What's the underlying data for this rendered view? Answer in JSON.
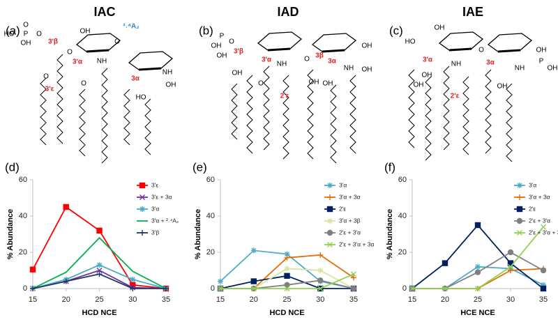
{
  "structures": [
    {
      "title": "IAC",
      "letter": "(a)",
      "labels": [
        {
          "text": "O",
          "color": "#000"
        },
        {
          "text": "HO",
          "color": "#000"
        },
        {
          "text": "P",
          "color": "#000"
        },
        {
          "text": "O",
          "color": "#000"
        },
        {
          "text": "OH",
          "color": "#000"
        },
        {
          "text": "OH",
          "color": "#000"
        },
        {
          "text": "O",
          "color": "#000"
        },
        {
          "text": "NH",
          "color": "#000"
        },
        {
          "text": "NH",
          "color": "#000"
        },
        {
          "text": "O",
          "color": "#000"
        },
        {
          "text": "O",
          "color": "#000"
        },
        {
          "text": "O",
          "color": "#000"
        },
        {
          "text": "HO",
          "color": "#000"
        },
        {
          "text": "OH",
          "color": "#000"
        },
        {
          "text": "3'β",
          "color": "#e02020"
        },
        {
          "text": "3'α",
          "color": "#e02020"
        },
        {
          "text": "3'ε",
          "color": "#e02020"
        },
        {
          "text": "3α",
          "color": "#e02020"
        },
        {
          "text": "²˒⁴A₂",
          "color": "#2e86c1"
        }
      ]
    },
    {
      "title": "IAD",
      "letter": "(b)",
      "labels": [
        {
          "text": "OH",
          "color": "#000"
        },
        {
          "text": "P",
          "color": "#000"
        },
        {
          "text": "O",
          "color": "#000"
        },
        {
          "text": "OH",
          "color": "#000"
        },
        {
          "text": "OH",
          "color": "#000"
        },
        {
          "text": "NH",
          "color": "#000"
        },
        {
          "text": "NH",
          "color": "#000"
        },
        {
          "text": "O",
          "color": "#000"
        },
        {
          "text": "O",
          "color": "#000"
        },
        {
          "text": "OH",
          "color": "#000"
        },
        {
          "text": "OH",
          "color": "#000"
        },
        {
          "text": "OH",
          "color": "#000"
        },
        {
          "text": "OH",
          "color": "#000"
        },
        {
          "text": "3'β",
          "color": "#e02020"
        },
        {
          "text": "3'α",
          "color": "#e02020"
        },
        {
          "text": "3β",
          "color": "#e02020"
        },
        {
          "text": "3α",
          "color": "#e02020"
        },
        {
          "text": "2'ε",
          "color": "#e02020"
        }
      ]
    },
    {
      "title": "IAE",
      "letter": "(c)",
      "labels": [
        {
          "text": "OH",
          "color": "#000"
        },
        {
          "text": "HO",
          "color": "#000"
        },
        {
          "text": "NH",
          "color": "#000"
        },
        {
          "text": "NH",
          "color": "#000"
        },
        {
          "text": "O",
          "color": "#000"
        },
        {
          "text": "P",
          "color": "#000"
        },
        {
          "text": "OH",
          "color": "#000"
        },
        {
          "text": "OH",
          "color": "#000"
        },
        {
          "text": "OH",
          "color": "#000"
        },
        {
          "text": "OH",
          "color": "#000"
        },
        {
          "text": "OH",
          "color": "#000"
        },
        {
          "text": "3'α",
          "color": "#e02020"
        },
        {
          "text": "3α",
          "color": "#e02020"
        },
        {
          "text": "2'ε",
          "color": "#e02020"
        }
      ]
    }
  ],
  "chart_data": [
    {
      "type": "line",
      "letter": "(d)",
      "y_label": "% Abundance",
      "x_label": "HCD NCE",
      "x": [
        15,
        20,
        25,
        30,
        35
      ],
      "xlim": [
        15,
        35
      ],
      "xticks": [
        15,
        20,
        25,
        30,
        35
      ],
      "ylim": [
        0,
        60
      ],
      "yticks": [
        0,
        20,
        40,
        60
      ],
      "legend_position": "top-right",
      "series": [
        {
          "name": "3'ε",
          "color": "#ff0000",
          "marker": "square",
          "values": [
            10.5,
            45,
            32,
            2,
            0
          ]
        },
        {
          "name": "3'ε + 3α",
          "color": "#7030a0",
          "marker": "x",
          "values": [
            0,
            4,
            10,
            0.5,
            0
          ]
        },
        {
          "name": "3'α",
          "color": "#4bacc6",
          "marker": "star",
          "values": [
            0,
            5,
            13,
            5,
            0
          ]
        },
        {
          "name": "3'α +  ²˒⁴A₂",
          "color": "#00b050",
          "marker": "none",
          "values": [
            0,
            9,
            28,
            9.5,
            0
          ]
        },
        {
          "name": "3'β",
          "color": "#1f3864",
          "marker": "plus",
          "values": [
            0,
            4,
            8,
            0,
            0
          ]
        }
      ]
    },
    {
      "type": "line",
      "letter": "(e)",
      "y_label": "% Abundance",
      "x_label": "HCD NCE",
      "x": [
        15,
        20,
        25,
        30,
        35
      ],
      "xlim": [
        15,
        35
      ],
      "xticks": [
        15,
        20,
        25,
        30,
        35
      ],
      "ylim": [
        0,
        60
      ],
      "yticks": [
        0,
        20,
        40,
        60
      ],
      "legend_position": "top-right",
      "series": [
        {
          "name": "3'α",
          "color": "#4bacc6",
          "marker": "star",
          "values": [
            4,
            21,
            19,
            4,
            0
          ]
        },
        {
          "name": "3'α + 3α",
          "color": "#e46c0a",
          "marker": "plus",
          "values": [
            0,
            0,
            17,
            18.5,
            6
          ]
        },
        {
          "name": "2'ε",
          "color": "#002060",
          "marker": "square",
          "values": [
            0,
            4,
            7,
            0,
            0
          ]
        },
        {
          "name": "3'α + 3β",
          "color": "#d7e4a0",
          "marker": "star",
          "values": [
            0,
            0,
            11,
            10,
            0
          ]
        },
        {
          "name": "2'ε + 3'α",
          "color": "#7f7f7f",
          "marker": "circle",
          "values": [
            0,
            0,
            2,
            4.5,
            0
          ]
        },
        {
          "name": "2'ε + 3'α + 3α",
          "color": "#92d050",
          "marker": "x",
          "values": [
            0,
            0,
            0,
            0,
            8
          ]
        }
      ]
    },
    {
      "type": "line",
      "letter": "(f)",
      "y_label": "% Abundance",
      "x_label": "HCE NCE",
      "x": [
        15,
        20,
        25,
        30,
        35
      ],
      "xlim": [
        15,
        35
      ],
      "xticks": [
        15,
        20,
        25,
        30,
        35
      ],
      "ylim": [
        0,
        60
      ],
      "yticks": [
        0,
        20,
        40,
        60
      ],
      "legend_position": "top-right",
      "series": [
        {
          "name": "3'α",
          "color": "#4bacc6",
          "marker": "star",
          "values": [
            0,
            0,
            12,
            11,
            2
          ]
        },
        {
          "name": "3'α + 3α",
          "color": "#e46c0a",
          "marker": "plus",
          "values": [
            0,
            0,
            0,
            10,
            11
          ]
        },
        {
          "name": "2'ε",
          "color": "#002060",
          "marker": "square",
          "values": [
            0,
            14,
            35,
            14,
            0
          ]
        },
        {
          "name": "2'ε + 3'α",
          "color": "#7f7f7f",
          "marker": "circle",
          "values": [
            0,
            0,
            9,
            20,
            10
          ]
        },
        {
          "name": "2'ε + 3'α + 3α",
          "color": "#92d050",
          "marker": "x",
          "values": [
            0,
            0,
            0,
            12,
            34
          ]
        }
      ]
    }
  ]
}
